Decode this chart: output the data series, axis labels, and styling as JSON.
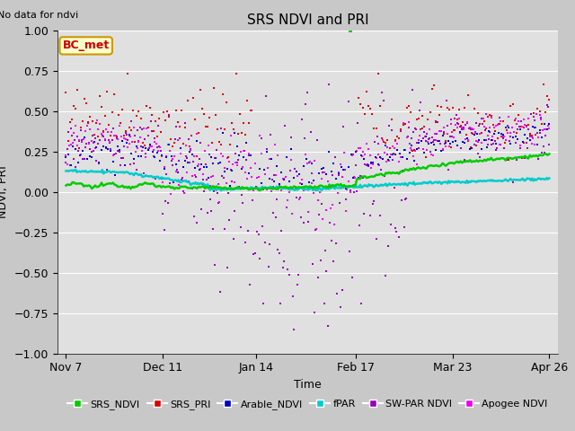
{
  "title": "SRS NDVI and PRI",
  "no_data_text": "No data for ndvi",
  "ylabel": "NDVI, PRI",
  "xlabel": "Time",
  "ylim": [
    -1.0,
    1.0
  ],
  "fig_bg_color": "#c8c8c8",
  "plot_bg_color": "#e0e0e0",
  "grid_color": "white",
  "annotation_text": "BC_met",
  "annotation_bg": "#ffffcc",
  "annotation_border": "#cc9900",
  "annotation_text_color": "#cc0000",
  "legend_items": [
    {
      "label": "SRS_NDVI",
      "color": "#00cc00"
    },
    {
      "label": "SRS_PRI",
      "color": "#dd0000"
    },
    {
      "label": "Arable_NDVI",
      "color": "#0000cc"
    },
    {
      "label": "fPAR",
      "color": "#00cccc"
    },
    {
      "label": "SW-PAR NDVI",
      "color": "#9900bb"
    },
    {
      "label": "Apogee NDVI",
      "color": "#ee00ee"
    }
  ],
  "xticks": [
    0,
    34,
    67,
    102,
    136,
    170
  ],
  "xtick_labels": [
    "Nov 7",
    "Dec 11",
    "Jan 14",
    "Feb 17",
    "Mar 23",
    "Apr 26"
  ]
}
